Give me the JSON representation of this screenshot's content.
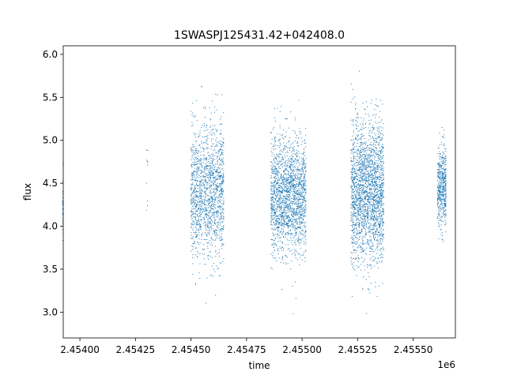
{
  "chart_data": {
    "type": "scatter",
    "title": "1SWASPJ125431.42+042408.0",
    "xlabel": "time",
    "ylabel": "flux",
    "x_offset_label": "1e6",
    "xlim": [
      2.453925,
      2.45569
    ],
    "ylim": [
      2.7,
      6.1
    ],
    "xticks": [
      2.454,
      2.45425,
      2.4545,
      2.45475,
      2.455,
      2.45525,
      2.4555
    ],
    "xtick_labels": [
      "2.45400",
      "2.45425",
      "2.45450",
      "2.45475",
      "2.45500",
      "2.45525",
      "2.45550"
    ],
    "yticks": [
      3.0,
      3.5,
      4.0,
      4.5,
      5.0,
      5.5,
      6.0
    ],
    "ytick_labels": [
      "3.0",
      "3.5",
      "4.0",
      "4.5",
      "5.0",
      "5.5",
      "6.0"
    ],
    "grid": false,
    "marker_color": "#1f77b4",
    "observing_seasons": [
      {
        "x_range": [
          2.453922,
          2.453926
        ],
        "y_center": 4.2,
        "y_spread": 0.2,
        "point_count": 30
      },
      {
        "x_range": [
          2.4543,
          2.454308
        ],
        "y_center": 4.6,
        "y_spread": 0.3,
        "point_count": 10
      },
      {
        "x_range": [
          2.4545,
          2.45465
        ],
        "y_center": 4.4,
        "y_spread": 0.38,
        "point_count": 1500
      },
      {
        "x_range": [
          2.45486,
          2.45502
        ],
        "y_center": 4.35,
        "y_spread": 0.33,
        "point_count": 1900
      },
      {
        "x_range": [
          2.45522,
          2.45537
        ],
        "y_center": 4.4,
        "y_spread": 0.42,
        "point_count": 2200
      },
      {
        "x_range": [
          2.45561,
          2.45565
        ],
        "y_center": 4.45,
        "y_spread": 0.22,
        "point_count": 500
      }
    ]
  }
}
